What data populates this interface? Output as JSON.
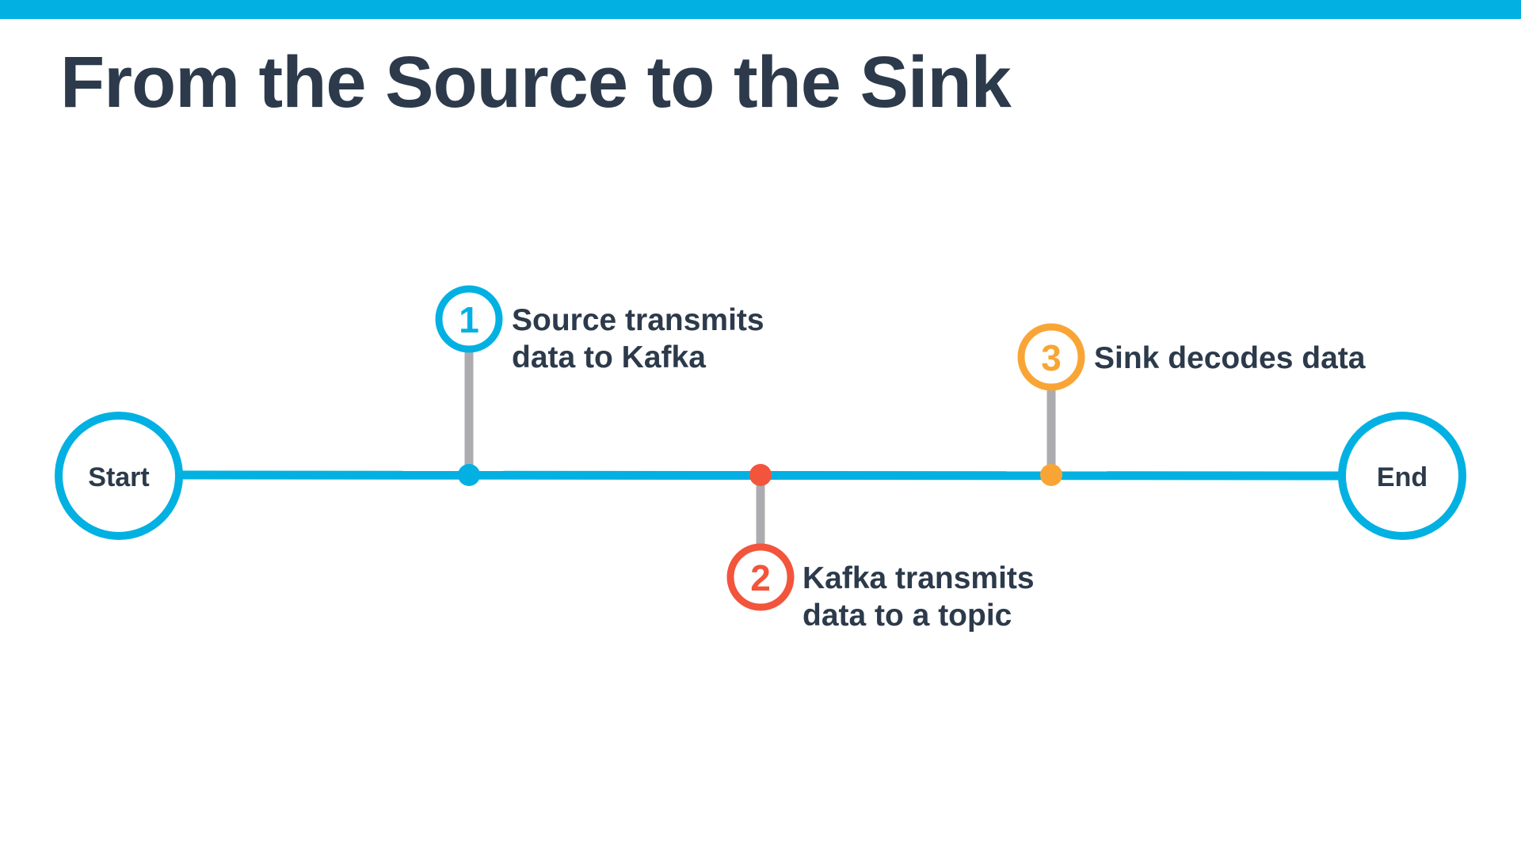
{
  "title": "From the Source to the Sink",
  "colors": {
    "accent": "#02b1e2",
    "connector": "#acacb0",
    "text": "#2c3a4b",
    "step1": "#02b1e2",
    "step2": "#f2553c",
    "step3": "#f9a535"
  },
  "timeline": {
    "start_label": "Start",
    "end_label": "End"
  },
  "steps": [
    {
      "number": "1",
      "line1": "Source transmits",
      "line2": "data to Kafka"
    },
    {
      "number": "2",
      "line1": "Kafka transmits",
      "line2": "data to a topic"
    },
    {
      "number": "3",
      "line1": "Sink decodes data",
      "line2": ""
    }
  ]
}
